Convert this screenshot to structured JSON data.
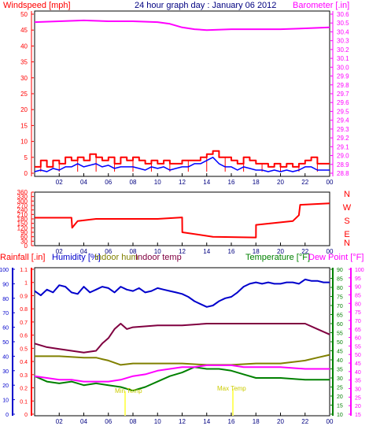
{
  "chart_data": [
    {
      "type": "line",
      "title": "24 hour graph day : January 06 2012",
      "left_axis_label": "Windspeed [mph]",
      "right_axis_label": "Barometer [.in]",
      "x_ticks": [
        "02",
        "04",
        "06",
        "08",
        "10",
        "12",
        "14",
        "16",
        "18",
        "20",
        "22",
        "00"
      ],
      "left_ticks": [
        "0",
        "5",
        "10",
        "15",
        "20",
        "25",
        "30",
        "35",
        "40",
        "45",
        "50"
      ],
      "right_ticks": [
        "28.8",
        "28.9",
        "29.0",
        "29.1",
        "29.2",
        "29.3",
        "29.4",
        "29.5",
        "29.6",
        "29.7",
        "29.8",
        "29.9",
        "30.0",
        "30.1",
        "30.2",
        "30.3",
        "30.4",
        "30.5",
        "30.6"
      ],
      "ylim_left": [
        0,
        50
      ],
      "ylim_right": [
        28.8,
        30.6
      ],
      "series": [
        {
          "name": "gust",
          "axis": "left",
          "color": "#ff0000",
          "x": [
            0.0,
            0.5,
            1.0,
            1.5,
            2.0,
            2.5,
            3.0,
            3.5,
            4.0,
            4.5,
            5.0,
            5.5,
            6.0,
            6.5,
            7.0,
            7.5,
            8.0,
            8.5,
            9.0,
            9.5,
            10.0,
            10.5,
            11.0,
            11.5,
            12.0,
            12.5,
            13.0,
            13.5,
            14.0,
            14.5,
            15.0,
            15.5,
            16.0,
            16.5,
            17.0,
            17.5,
            18.0,
            18.5,
            19.0,
            19.5,
            20.0,
            20.5,
            21.0,
            21.5,
            22.0,
            22.5,
            23.0,
            23.5,
            24.0
          ],
          "y": [
            2,
            4,
            2,
            4,
            3,
            5,
            4,
            5,
            4,
            6,
            5,
            4,
            5,
            3,
            5,
            4,
            5,
            4,
            3,
            4,
            3,
            4,
            3,
            3,
            4,
            4,
            4,
            5,
            6,
            7,
            5,
            5,
            4,
            3,
            5,
            4,
            3,
            3,
            2,
            3,
            2,
            3,
            2,
            3,
            4,
            5,
            3,
            3,
            3
          ]
        },
        {
          "name": "average",
          "axis": "left",
          "color": "#0000ff",
          "x": [
            0.0,
            0.5,
            1.0,
            1.5,
            2.0,
            2.5,
            3.0,
            3.5,
            4.0,
            4.5,
            5.0,
            5.5,
            6.0,
            6.5,
            7.0,
            7.5,
            8.0,
            8.5,
            9.0,
            9.5,
            10.0,
            10.5,
            11.0,
            11.5,
            12.0,
            12.5,
            13.0,
            13.5,
            14.0,
            14.5,
            15.0,
            15.5,
            16.0,
            16.5,
            17.0,
            17.5,
            18.0,
            18.5,
            19.0,
            19.5,
            20.0,
            20.5,
            21.0,
            21.5,
            22.0,
            22.5,
            23.0,
            23.5,
            24.0
          ],
          "y": [
            0.5,
            1,
            0.5,
            1.5,
            1,
            2,
            2,
            3,
            2,
            2.5,
            3,
            2,
            2.5,
            1.5,
            2,
            2,
            2,
            1.5,
            1,
            2,
            1.5,
            2,
            1,
            1.5,
            2,
            2,
            3,
            3,
            4,
            5,
            3,
            2,
            2,
            1,
            2,
            1.5,
            1,
            1,
            0.5,
            1,
            0.5,
            1,
            0.5,
            1,
            2,
            2,
            1,
            1,
            1
          ]
        },
        {
          "name": "barometer",
          "axis": "right",
          "color": "#ff00ff",
          "x": [
            0,
            2,
            4,
            6,
            8,
            10,
            11,
            12,
            13,
            14,
            16,
            18,
            20,
            22,
            24
          ],
          "y": [
            30.51,
            30.52,
            30.53,
            30.52,
            30.52,
            30.51,
            30.49,
            30.45,
            30.43,
            30.42,
            30.43,
            30.43,
            30.43,
            30.44,
            30.45
          ]
        }
      ]
    },
    {
      "type": "line",
      "title": "",
      "y_ticks": [
        "0",
        "30",
        "60",
        "90",
        "120",
        "150",
        "180",
        "210",
        "240",
        "270",
        "300",
        "330",
        "360"
      ],
      "compass_labels": [
        "N",
        "W",
        "S",
        "E",
        "N"
      ],
      "ylim": [
        0,
        360
      ],
      "series": [
        {
          "name": "wind direction",
          "color": "#ff0000",
          "x": [
            0,
            2.5,
            3.0,
            3.05,
            3.5,
            5.0,
            8.0,
            10.0,
            10.01,
            12.0,
            12.01,
            14.5,
            18.0,
            18.01,
            21.0,
            21.5,
            21.6,
            24.0
          ],
          "y": [
            188,
            188,
            188,
            120,
            165,
            180,
            180,
            180,
            180,
            190,
            90,
            60,
            55,
            140,
            165,
            205,
            275,
            285
          ]
        }
      ]
    },
    {
      "type": "line",
      "title": "",
      "legend": [
        "Rainfall [.in]",
        "Humidity [%]",
        "Indoor hum",
        "Indoor temp",
        "Temperature [°F]",
        "Dew Point [°F]"
      ],
      "rain_ticks": [
        "0",
        "0.1",
        "0.2",
        "0.3",
        "0.4",
        "0.5",
        "0.6",
        "0.7",
        "0.8",
        "0.9",
        "1",
        "1.1"
      ],
      "humidity_ticks": [
        "0",
        "10",
        "20",
        "30",
        "40",
        "50",
        "60",
        "70",
        "80",
        "90",
        "100"
      ],
      "temp_ticks": [
        "10",
        "15",
        "20",
        "25",
        "30",
        "35",
        "40",
        "45",
        "50",
        "55",
        "60",
        "65",
        "70",
        "75",
        "80",
        "85",
        "90"
      ],
      "dew_ticks": [
        "15",
        "20",
        "25",
        "30",
        "35",
        "40",
        "45",
        "50",
        "55",
        "60",
        "65",
        "70",
        "75",
        "80",
        "85",
        "90",
        "95",
        "100"
      ],
      "annotations": [
        "Min Temp",
        "Max Temp"
      ],
      "ylim_humidity": [
        0,
        100
      ],
      "ylim_temp": [
        10,
        90
      ],
      "series": [
        {
          "name": "Humidity [%]",
          "color": "#0000cc",
          "x": [
            0.0,
            0.5,
            1.0,
            1.5,
            2.0,
            2.5,
            3.0,
            3.5,
            4.0,
            4.5,
            5.0,
            5.5,
            6.0,
            6.5,
            7.0,
            7.5,
            8.0,
            8.5,
            9.0,
            9.5,
            10.0,
            10.5,
            11.0,
            11.5,
            12.0,
            12.5,
            13.0,
            13.5,
            14.0,
            14.5,
            15.0,
            15.5,
            16.0,
            16.5,
            17.0,
            17.5,
            18.0,
            18.5,
            19.0,
            19.5,
            20.0,
            20.5,
            21.0,
            21.5,
            22.0,
            22.5,
            23.0,
            23.5,
            24.0
          ],
          "y": [
            85,
            82,
            86,
            84,
            89,
            88,
            84,
            83,
            88,
            84,
            86,
            88,
            87,
            84,
            88,
            86,
            85,
            87,
            84,
            85,
            87,
            86,
            85,
            84,
            83,
            81,
            78,
            76,
            74,
            75,
            78,
            80,
            81,
            84,
            88,
            90,
            91,
            90,
            91,
            90,
            90,
            91,
            91,
            90,
            93,
            92,
            92,
            91,
            91
          ]
        },
        {
          "name": "Indoor hum",
          "color": "#808000",
          "x": [
            0,
            2,
            4,
            5,
            5.5,
            6,
            7,
            8,
            10,
            12,
            14,
            16,
            18,
            20,
            22,
            23,
            24
          ],
          "y": [
            40,
            40,
            39,
            39,
            38,
            37,
            34,
            35,
            35,
            35,
            34,
            34,
            35,
            35,
            37,
            39,
            41
          ]
        },
        {
          "name": "Indoor temp",
          "color": "#800040",
          "x": [
            0,
            1,
            2,
            3,
            4,
            5,
            5.5,
            6,
            6.5,
            7,
            7.5,
            8,
            10,
            12,
            14,
            16,
            18,
            20,
            22,
            23,
            24
          ],
          "y": [
            49,
            47,
            46,
            45,
            44,
            45,
            49,
            52,
            57,
            60,
            57,
            58,
            59,
            59,
            60,
            60,
            60,
            60,
            60,
            57,
            54
          ]
        },
        {
          "name": "Temperature [°F]",
          "color": "#008000",
          "x": [
            0,
            1,
            2,
            3,
            4,
            5,
            6,
            7,
            8,
            9,
            10,
            11,
            12,
            13,
            14,
            15,
            16,
            17,
            18,
            20,
            22,
            24
          ],
          "y": [
            31,
            28,
            27,
            28,
            26,
            27,
            26,
            25,
            23,
            25,
            28,
            31,
            33,
            36,
            35,
            35,
            34,
            32,
            30,
            30,
            29,
            29
          ]
        },
        {
          "name": "Dew Point [°F]",
          "color": "#ff00ff",
          "x": [
            0,
            1,
            2,
            3,
            4,
            5,
            6,
            7,
            8,
            9,
            10,
            11,
            12,
            13,
            14,
            15,
            16,
            17,
            18,
            20,
            22,
            24
          ],
          "y": [
            31,
            30,
            29,
            29,
            28,
            28,
            28,
            29,
            31,
            32,
            34,
            35,
            36,
            36,
            37,
            37,
            37,
            36,
            36,
            36,
            35,
            35
          ]
        }
      ]
    }
  ]
}
